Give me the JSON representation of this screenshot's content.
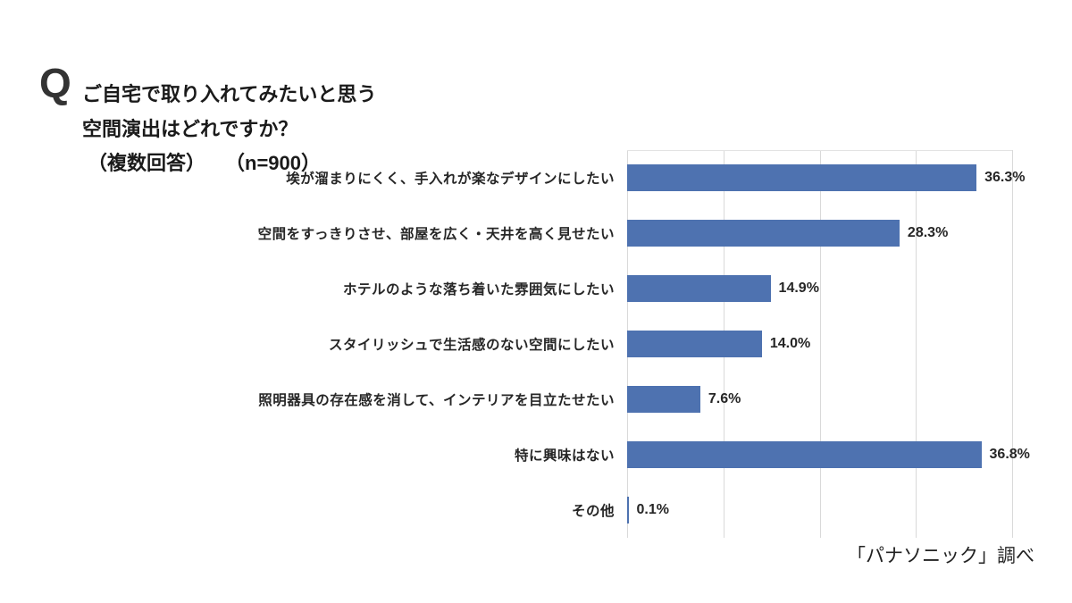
{
  "header": {
    "q_mark": "Q",
    "title_line1": "ご自宅で取り入れてみたいと思う",
    "title_line2": "空間演出はどれですか？",
    "title_line3_part1": "（複数回答）",
    "title_line3_part2": "（n=900）"
  },
  "source_credit": "「パナソニック」調べ",
  "colors": {
    "bar": "#4e72b0",
    "gridline": "#d9d9d9",
    "text": "#262626"
  },
  "chart_data": {
    "type": "bar",
    "orientation": "horizontal",
    "title": "ご自宅で取り入れてみたいと思う空間演出はどれですか？（複数回答）（n=900）",
    "categories": [
      "埃が溜まりにくく、手入れが楽なデザインにしたい",
      "空間をすっきりさせ、部屋を広く・天井を高く見せたい",
      "ホテルのような落ち着いた雰囲気にしたい",
      "スタイリッシュで生活感のない空間にしたい",
      "照明器具の存在感を消して、インテリアを目立たせたい",
      "特に興味はない",
      "その他"
    ],
    "values": [
      36.3,
      28.3,
      14.9,
      14.0,
      7.6,
      36.8,
      0.1
    ],
    "value_labels": [
      "36.3%",
      "28.3%",
      "14.9%",
      "14.0%",
      "7.6%",
      "36.8%",
      "0.1%"
    ],
    "xlabel": "",
    "ylabel": "",
    "xlim": [
      0,
      40
    ],
    "gridline_interval": 10,
    "grid": true,
    "legend": false,
    "axis_tick_labels_visible": false
  }
}
